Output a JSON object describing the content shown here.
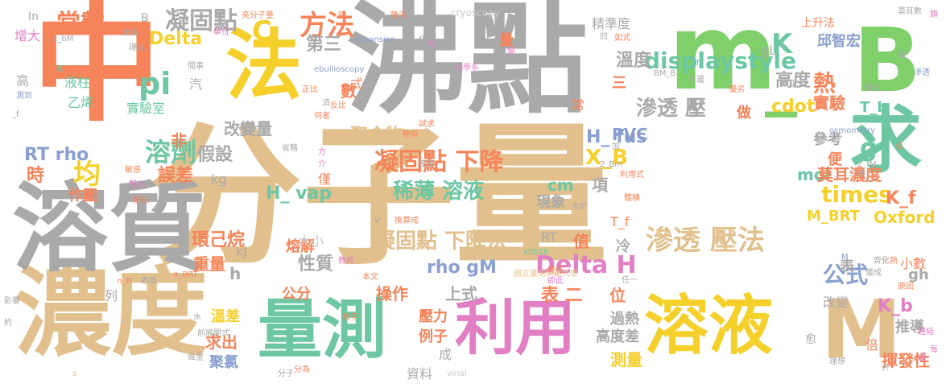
{
  "palette": {
    "orange": "#f5845a",
    "tan": "#e2c08d",
    "grey": "#a9a9a9",
    "green": "#7fcf6a",
    "yellow": "#f5cf2a",
    "teal": "#6cc7a2",
    "pink": "#e27fc4",
    "blue": "#8a9fcf",
    "lightgrey": "#c8c8c8"
  },
  "words": [
    {
      "text": "中",
      "color": "orange"
    },
    {
      "text": "分子量",
      "color": "tan"
    },
    {
      "text": "沸點",
      "color": "grey"
    },
    {
      "text": "m",
      "color": "green"
    },
    {
      "text": "B",
      "color": "green"
    },
    {
      "text": "_",
      "color": "green"
    },
    {
      "text": "濃度",
      "color": "tan"
    },
    {
      "text": "溶質",
      "color": "grey"
    },
    {
      "text": "法",
      "color": "yellow"
    },
    {
      "text": "求",
      "color": "teal"
    },
    {
      "text": "量測",
      "color": "teal"
    },
    {
      "text": "利用",
      "color": "pink"
    },
    {
      "text": "溶液",
      "color": "yellow"
    },
    {
      "text": "M",
      "color": "tan"
    },
    {
      "text": "displaystyle",
      "color": "teal"
    },
    {
      "text": "凝固點 下降",
      "color": "orange"
    },
    {
      "text": "凝固點 下降法",
      "color": "tan"
    },
    {
      "text": "稀薄 溶液",
      "color": "teal"
    },
    {
      "text": "滲透 壓法",
      "color": "tan"
    },
    {
      "text": "Delta H",
      "color": "pink"
    },
    {
      "text": "方法",
      "color": "orange"
    },
    {
      "text": "常數",
      "color": "orange"
    },
    {
      "text": "凝固點",
      "color": "grey"
    },
    {
      "text": "pi",
      "color": "teal"
    },
    {
      "text": "溶劑",
      "color": "teal"
    },
    {
      "text": "均",
      "color": "yellow"
    },
    {
      "text": "times",
      "color": "yellow"
    },
    {
      "text": "K",
      "color": "teal"
    },
    {
      "text": "C",
      "color": "yellow"
    },
    {
      "text": "Delta",
      "color": "yellow"
    },
    {
      "text": "熱",
      "color": "orange"
    },
    {
      "text": "公式",
      "color": "blue"
    },
    {
      "text": "第三",
      "color": "grey"
    },
    {
      "text": "溫度",
      "color": "grey"
    },
    {
      "text": "高度",
      "color": "grey"
    },
    {
      "text": "滲透 壓",
      "color": "grey"
    },
    {
      "text": "g",
      "color": "teal"
    },
    {
      "text": "RT rho",
      "color": "blue"
    },
    {
      "text": "H_ fus",
      "color": "blue"
    },
    {
      "text": "X_B",
      "color": "yellow"
    },
    {
      "text": "cdot",
      "color": "yellow"
    },
    {
      "text": "實驗",
      "color": "orange"
    },
    {
      "text": "聚合物",
      "color": "tan"
    },
    {
      "text": "假設",
      "color": "grey"
    },
    {
      "text": "誤差",
      "color": "orange"
    },
    {
      "text": "時",
      "color": "orange"
    },
    {
      "text": "環己烷",
      "color": "orange"
    },
    {
      "text": "性質",
      "color": "grey"
    },
    {
      "text": "H_ vap",
      "color": "teal"
    },
    {
      "text": "rho gM",
      "color": "blue"
    },
    {
      "text": "表 二",
      "color": "orange"
    },
    {
      "text": "上式",
      "color": "grey"
    },
    {
      "text": "操作",
      "color": "orange"
    },
    {
      "text": "改變量",
      "color": "grey"
    },
    {
      "text": "mol",
      "color": "teal"
    },
    {
      "text": "莫耳濃度",
      "color": "orange"
    },
    {
      "text": "K_f",
      "color": "orange"
    },
    {
      "text": "Oxford",
      "color": "yellow"
    },
    {
      "text": "M_BRT",
      "color": "yellow"
    },
    {
      "text": "K_b",
      "color": "pink"
    },
    {
      "text": "推導",
      "color": "grey"
    },
    {
      "text": "揮發性",
      "color": "orange"
    },
    {
      "text": "測量",
      "color": "yellow"
    },
    {
      "text": "高度差",
      "color": "grey"
    },
    {
      "text": "過熱",
      "color": "grey"
    },
    {
      "text": "重量",
      "color": "orange"
    },
    {
      "text": "求出",
      "color": "orange"
    },
    {
      "text": "聚氯",
      "color": "blue"
    },
    {
      "text": "溫差",
      "color": "yellow"
    },
    {
      "text": "作圖",
      "color": "orange"
    },
    {
      "text": "PVC",
      "color": "blue"
    },
    {
      "text": "cm",
      "color": "teal"
    },
    {
      "text": "項",
      "color": "grey"
    },
    {
      "text": "現象",
      "color": "grey"
    },
    {
      "text": "值",
      "color": "orange"
    },
    {
      "text": "位",
      "color": "orange"
    },
    {
      "text": "壓力",
      "color": "orange"
    },
    {
      "text": "例子",
      "color": "orange"
    },
    {
      "text": "成",
      "color": "grey"
    },
    {
      "text": "資料",
      "color": "grey"
    },
    {
      "text": "公分",
      "color": "orange"
    },
    {
      "text": "熔解",
      "color": "orange"
    },
    {
      "text": "大小",
      "color": "lightgrey"
    },
    {
      "text": "參考",
      "color": "grey"
    },
    {
      "text": "實驗室",
      "color": "teal"
    },
    {
      "text": "液柱",
      "color": "teal"
    },
    {
      "text": "乙烯",
      "color": "teal"
    },
    {
      "text": "增大",
      "color": "pink"
    },
    {
      "text": "高",
      "color": "grey"
    },
    {
      "text": "精準度",
      "color": "grey"
    },
    {
      "text": "上升法",
      "color": "orange"
    },
    {
      "text": "邱智宏",
      "color": "blue"
    },
    {
      "text": "式",
      "color": "orange"
    },
    {
      "text": "數",
      "color": "orange"
    },
    {
      "text": "三",
      "color": "orange"
    },
    {
      "text": "做",
      "color": "orange"
    },
    {
      "text": "T_b",
      "color": "teal"
    },
    {
      "text": "便",
      "color": "orange"
    },
    {
      "text": "T_f",
      "color": "orange"
    },
    {
      "text": "RT",
      "color": "grey"
    },
    {
      "text": "gh",
      "color": "grey"
    },
    {
      "text": "小數",
      "color": "orange"
    },
    {
      "text": "改變",
      "color": "grey"
    },
    {
      "text": "倍",
      "color": "orange"
    },
    {
      "text": "非",
      "color": "orange"
    },
    {
      "text": "kg",
      "color": "grey"
    },
    {
      "text": "kJ",
      "color": "grey"
    },
    {
      "text": "h",
      "color": "grey"
    },
    {
      "text": "冷",
      "color": "grey"
    },
    {
      "text": "表",
      "color": "grey"
    },
    {
      "text": "常",
      "color": "orange"
    },
    {
      "text": "汽",
      "color": "grey"
    },
    {
      "text": "僅",
      "color": "orange"
    },
    {
      "text": "愈",
      "color": "grey"
    },
    {
      "text": "列",
      "color": "grey"
    },
    {
      "text": "In",
      "color": "grey"
    },
    {
      "text": "B",
      "color": "grey"
    },
    {
      "text": "量",
      "color": "orange"
    },
    {
      "text": "gL",
      "color": "grey"
    },
    {
      "text": "cryoscopy",
      "color": "lightgrey"
    },
    {
      "text": "expansion",
      "color": "blue"
    },
    {
      "text": "ebullioscopy",
      "color": "blue"
    },
    {
      "text": "osmometry",
      "color": "blue"
    },
    {
      "text": "virial",
      "color": "lightgrey"
    },
    {
      "text": "國立臺灣師範大學",
      "color": "tan"
    },
    {
      "text": "x001E",
      "color": "teal"
    },
    {
      "text": "化學系",
      "color": "pink"
    },
    {
      "text": "如式",
      "color": "orange"
    },
    {
      "text": "隆溫",
      "color": "orange"
    },
    {
      "text": "莫耳數",
      "color": "grey"
    },
    {
      "text": "類",
      "color": "pink"
    },
    {
      "text": "分為",
      "color": "orange"
    },
    {
      "text": "亮分子量",
      "color": "orange"
    },
    {
      "text": "測到",
      "color": "blue"
    },
    {
      "text": "公",
      "color": "orange"
    },
    {
      "text": "同",
      "color": "grey"
    },
    {
      "text": "例",
      "color": "pink"
    },
    {
      "text": "吸",
      "color": "orange"
    },
    {
      "text": "影響",
      "color": "grey"
    },
    {
      "text": "約",
      "color": "grey"
    },
    {
      "text": "即爲",
      "color": "grey"
    },
    {
      "text": "來得",
      "color": "grey"
    },
    {
      "text": "單位",
      "color": "pink"
    },
    {
      "text": "理此",
      "color": "grey"
    },
    {
      "text": "知",
      "color": "teal"
    },
    {
      "text": "正比",
      "color": "orange"
    },
    {
      "text": "反比",
      "color": "orange"
    },
    {
      "text": "何者",
      "color": "orange"
    },
    {
      "text": "試求",
      "color": "orange"
    },
    {
      "text": "省略",
      "color": "grey"
    },
    {
      "text": "密度",
      "color": "grey"
    },
    {
      "text": "換算成",
      "color": "orange"
    },
    {
      "text": "教師",
      "color": "pink"
    },
    {
      "text": "本文",
      "color": "orange"
    },
    {
      "text": "數字",
      "color": "orange"
    },
    {
      "text": "分子",
      "color": "grey"
    },
    {
      "text": "敏感",
      "color": "orange"
    },
    {
      "text": "熔化",
      "color": "orange"
    },
    {
      "text": "原因",
      "color": "orange"
    },
    {
      "text": "理想",
      "color": "grey"
    },
    {
      "text": "連結",
      "color": "pink"
    },
    {
      "text": "修正",
      "color": "grey"
    },
    {
      "text": "右邊",
      "color": "grey"
    },
    {
      "text": "優劣",
      "color": "orange"
    },
    {
      "text": "滲透",
      "color": "blue"
    },
    {
      "text": "化熱",
      "color": "orange"
    },
    {
      "text": "BRT",
      "color": "grey"
    },
    {
      "text": "n_BRT",
      "color": "orange"
    },
    {
      "text": "n_B",
      "color": "orange"
    },
    {
      "text": "2_bM",
      "color": "grey"
    },
    {
      "text": "2_fM",
      "color": "grey"
    },
    {
      "text": "BM_B",
      "color": "grey"
    },
    {
      "text": "M_",
      "color": "blue"
    },
    {
      "text": "2_Bm",
      "color": "grey"
    },
    {
      "text": "二者",
      "color": "grey"
    },
    {
      "text": "利用式",
      "color": "orange"
    },
    {
      "text": "體積",
      "color": "orange"
    },
    {
      "text": "大於",
      "color": "grey"
    },
    {
      "text": "任一",
      "color": "grey"
    },
    {
      "text": "齊化",
      "color": "grey"
    },
    {
      "text": "儀成",
      "color": "grey"
    },
    {
      "text": "即化",
      "color": "pink"
    },
    {
      "text": "擴大",
      "color": "grey"
    },
    {
      "text": "水",
      "color": "grey"
    },
    {
      "text": "前",
      "color": "grey"
    },
    {
      "text": "展開式",
      "color": "grey"
    },
    {
      "text": "維里",
      "color": "grey"
    },
    {
      "text": "物質",
      "color": "orange"
    },
    {
      "text": "化",
      "color": "grey"
    },
    {
      "text": "方",
      "color": "pink"
    },
    {
      "text": "介",
      "color": "pink"
    },
    {
      "text": "加",
      "color": "grey"
    },
    {
      "text": "化數",
      "color": "grey"
    },
    {
      "text": "f",
      "color": "blue"
    },
    {
      "text": "_f",
      "color": "blue"
    },
    {
      "text": "升",
      "color": "grey"
    },
    {
      "text": "優",
      "color": "pink"
    },
    {
      "text": "每",
      "color": "pink"
    },
    {
      "text": "變",
      "color": "pink"
    },
    {
      "text": "s",
      "color": "tan"
    },
    {
      "text": "V",
      "color": "grey"
    },
    {
      "text": "養任",
      "color": "orange"
    },
    {
      "text": "即此",
      "color": "pink"
    },
    {
      "text": "須",
      "color": "grey"
    },
    {
      "text": "間事",
      "color": "grey"
    },
    {
      "text": "備",
      "color": "grey"
    }
  ]
}
